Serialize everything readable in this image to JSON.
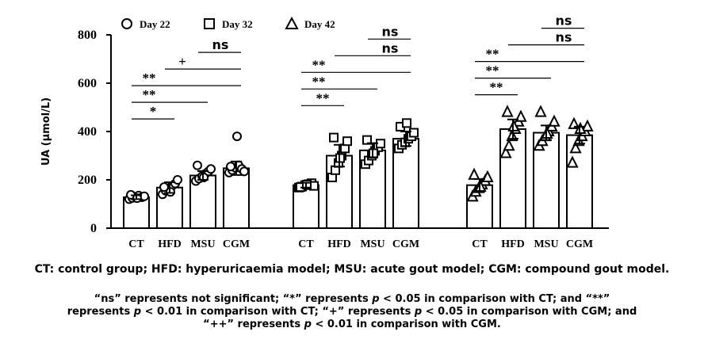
{
  "chart_data": {
    "type": "bar",
    "ylabel": "UA (μmol/L)",
    "ylim": [
      0,
      800
    ],
    "yticks": [
      0,
      200,
      400,
      600,
      800
    ],
    "legend": {
      "placement": "top-left",
      "entries": [
        {
          "label": "Day 22",
          "marker": "circle"
        },
        {
          "label": "Day 32",
          "marker": "square"
        },
        {
          "label": "Day 42",
          "marker": "triangle"
        }
      ]
    },
    "groups": [
      {
        "name": "Day 22",
        "marker": "circle",
        "categories": [
          "CT",
          "HFD",
          "MSU",
          "CGM"
        ],
        "values": [
          128,
          168,
          218,
          248
        ],
        "errors": [
          8,
          22,
          18,
          28
        ],
        "points": [
          [
            120,
            125,
            130,
            135,
            128,
            132,
            138,
            124
          ],
          [
            140,
            155,
            165,
            175,
            185,
            200,
            170,
            150
          ],
          [
            195,
            205,
            215,
            225,
            235,
            245,
            260,
            210
          ],
          [
            230,
            240,
            250,
            260,
            245,
            235,
            255,
            380
          ]
        ],
        "comparisons": [
          {
            "from": "CT",
            "to": "HFD",
            "label": "*"
          },
          {
            "from": "CT",
            "to": "MSU",
            "label": "**"
          },
          {
            "from": "CT",
            "to": "CGM",
            "label": "**"
          },
          {
            "from": "HFD",
            "to": "CGM",
            "label": "+"
          },
          {
            "from": "MSU",
            "to": "CGM",
            "label": "ns"
          }
        ]
      },
      {
        "name": "Day 32",
        "marker": "square",
        "categories": [
          "CT",
          "HFD",
          "MSU",
          "CGM"
        ],
        "values": [
          178,
          300,
          322,
          370
        ],
        "errors": [
          10,
          45,
          30,
          30
        ],
        "points": [
          [
            168,
            172,
            178,
            182,
            186,
            175,
            170,
            180
          ],
          [
            210,
            240,
            270,
            300,
            330,
            360,
            375,
            290
          ],
          [
            265,
            280,
            300,
            320,
            335,
            350,
            365,
            310
          ],
          [
            330,
            345,
            355,
            370,
            380,
            395,
            420,
            435
          ]
        ],
        "comparisons": [
          {
            "from": "CT",
            "to": "HFD",
            "label": "**"
          },
          {
            "from": "CT",
            "to": "MSU",
            "label": "**"
          },
          {
            "from": "CT",
            "to": "CGM",
            "label": "**"
          },
          {
            "from": "HFD",
            "to": "CGM",
            "label": "ns"
          },
          {
            "from": "MSU",
            "to": "CGM",
            "label": "ns"
          }
        ]
      },
      {
        "name": "Day 42",
        "marker": "triangle",
        "categories": [
          "CT",
          "HFD",
          "MSU",
          "CGM"
        ],
        "values": [
          178,
          410,
          395,
          385
        ],
        "errors": [
          25,
          40,
          30,
          35
        ],
        "points": [
          [
            130,
            150,
            165,
            180,
            195,
            210,
            220,
            170
          ],
          [
            310,
            340,
            380,
            410,
            440,
            460,
            480,
            420
          ],
          [
            340,
            360,
            380,
            400,
            420,
            440,
            480,
            390
          ],
          [
            270,
            330,
            360,
            380,
            400,
            420,
            430,
            410
          ]
        ],
        "comparisons": [
          {
            "from": "CT",
            "to": "HFD",
            "label": "**"
          },
          {
            "from": "CT",
            "to": "MSU",
            "label": "**"
          },
          {
            "from": "CT",
            "to": "CGM",
            "label": "**"
          },
          {
            "from": "HFD",
            "to": "CGM",
            "label": "ns"
          },
          {
            "from": "MSU",
            "to": "CGM",
            "label": "ns"
          }
        ]
      }
    ],
    "grid": false
  },
  "footnotes": {
    "definitions": "CT: control group; HFD: hyperuricaemia model; MSU: acute gout model; CGM: compound gout model.",
    "sig_line1_a": "“ns” represents not significant; “*” represents ",
    "sig_p1": "p",
    "sig_line1_b": " < 0.05 in comparison with CT; and “**”",
    "sig_line2_a": "represents ",
    "sig_p2": "p",
    "sig_line2_b": " < 0.01 in comparison with CT; “+” represents ",
    "sig_p3": "p",
    "sig_line2_c": " < 0.05 in comparison with CGM; and",
    "sig_line3_a": "“++” represents ",
    "sig_p4": "p",
    "sig_line3_b": " < 0.01 in comparison with CGM."
  }
}
